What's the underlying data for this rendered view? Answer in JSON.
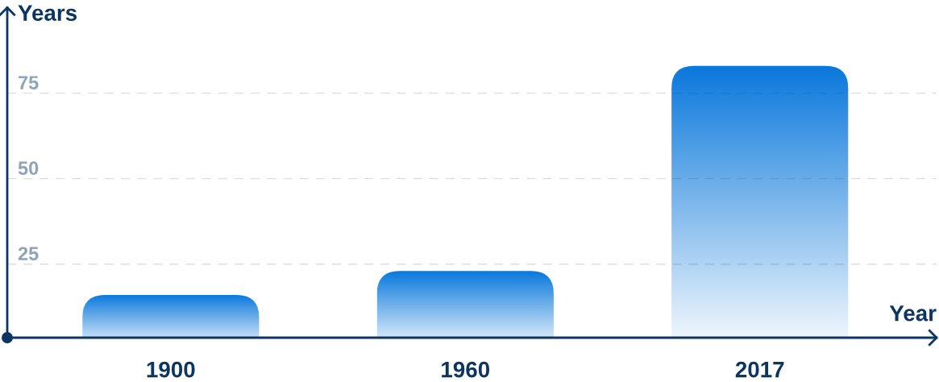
{
  "chart_data": {
    "type": "bar",
    "xlabel": "Year",
    "ylabel": "Years",
    "categories": [
      "1900",
      "1960",
      "2017"
    ],
    "values": [
      16,
      23,
      83
    ],
    "color": "#0a78dc",
    "ylim": [
      3.5,
      100
    ],
    "yticks": [
      25,
      50,
      75
    ],
    "grid": "y"
  }
}
